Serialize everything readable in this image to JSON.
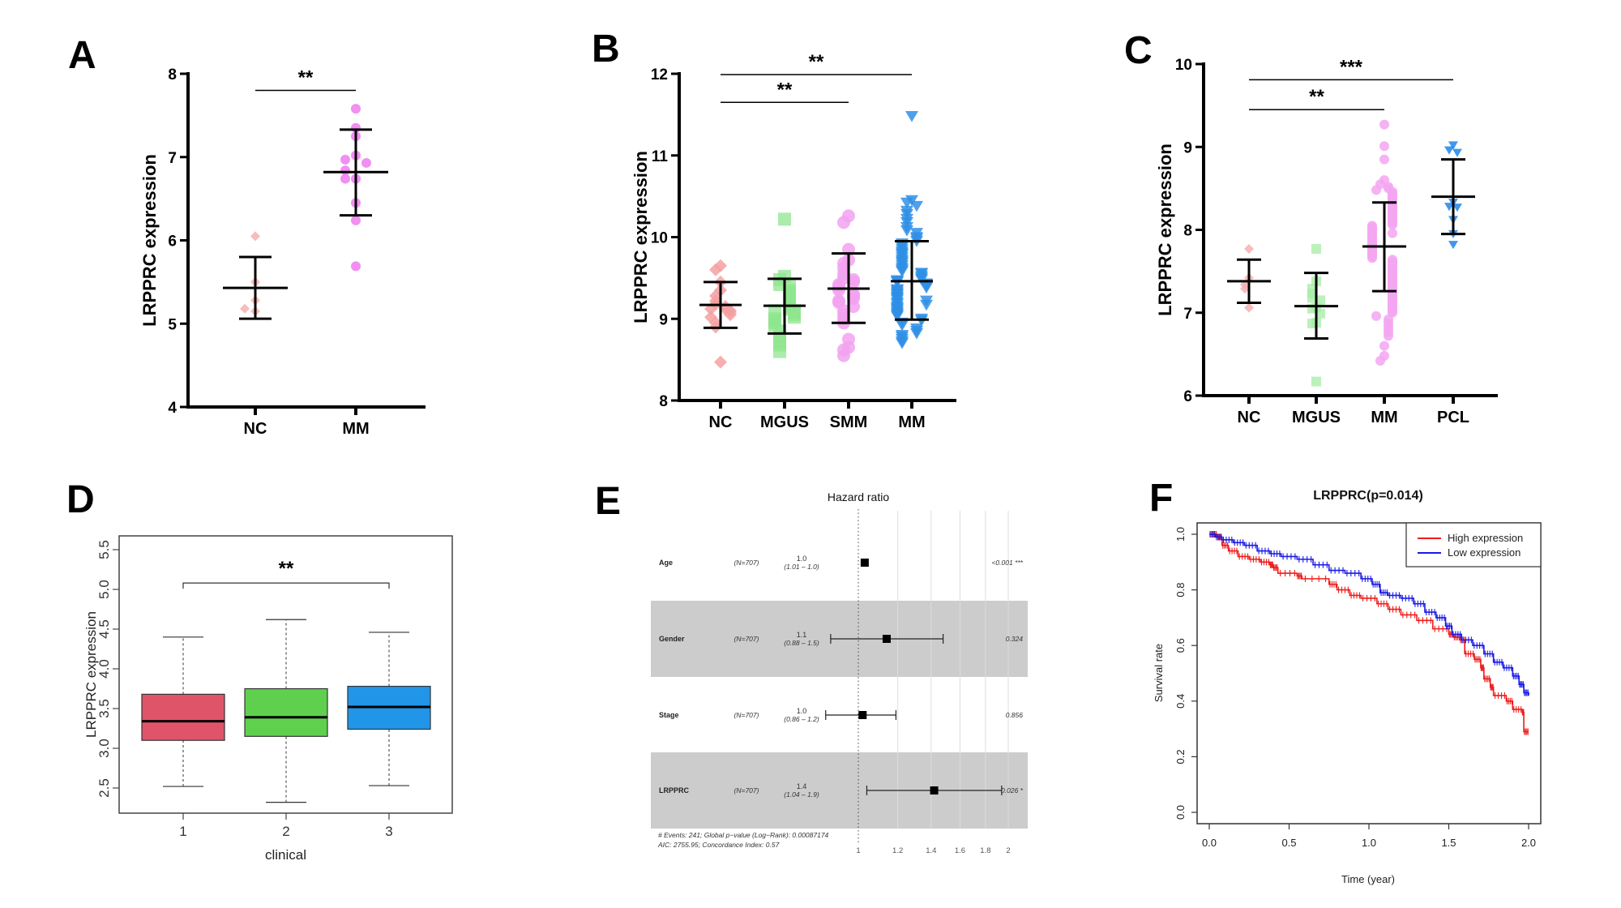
{
  "figure": {
    "panel_letters": [
      "A",
      "B",
      "C",
      "D",
      "E",
      "F"
    ]
  },
  "chart_data": [
    {
      "id": "A",
      "type": "scatter",
      "subtype": "dot-plot-mean-sd",
      "title": "",
      "xlabel": "",
      "ylabel": "LRPPRC expression",
      "ylim": [
        4,
        8
      ],
      "yticks": [
        4,
        5,
        6,
        7,
        8
      ],
      "categories": [
        "NC",
        "MM"
      ],
      "series": [
        {
          "name": "NC",
          "marker": "diamond",
          "color": "#f6b0b0",
          "values": [
            6.05,
            5.5,
            5.28,
            5.15,
            5.18
          ],
          "mean": 5.43,
          "sd_low": 5.06,
          "sd_high": 5.8
        },
        {
          "name": "MM",
          "marker": "circle",
          "color": "#ee7cee",
          "values": [
            7.58,
            7.35,
            7.25,
            7.02,
            6.97,
            6.93,
            6.84,
            6.74,
            6.74,
            6.45,
            6.24,
            5.69
          ],
          "mean": 6.82,
          "sd_low": 6.3,
          "sd_high": 7.33
        }
      ],
      "significance": [
        {
          "from": "NC",
          "to": "MM",
          "label": "**",
          "level": 7.8
        }
      ]
    },
    {
      "id": "B",
      "type": "scatter",
      "subtype": "dot-plot-mean-sd",
      "title": "",
      "xlabel": "",
      "ylabel": "LRPPRC expression",
      "ylim": [
        8,
        12
      ],
      "yticks": [
        8,
        9,
        10,
        11,
        12
      ],
      "categories": [
        "NC",
        "MGUS",
        "SMM",
        "MM"
      ],
      "series": [
        {
          "name": "NC",
          "marker": "diamond",
          "color": "#f4a0a0",
          "values": [
            9.65,
            9.6,
            9.45,
            9.35,
            9.28,
            9.22,
            9.18,
            9.15,
            9.12,
            9.12,
            9.1,
            9.08,
            9.05,
            9.02,
            8.95,
            8.9,
            8.47
          ],
          "mean": 9.17,
          "sd_low": 8.89,
          "sd_high": 9.45
        },
        {
          "name": "MGUS",
          "marker": "square",
          "color": "#8fe68f",
          "values": [
            10.22,
            9.52,
            9.48,
            9.42,
            9.4,
            9.35,
            9.32,
            9.28,
            9.25,
            9.22,
            9.18,
            9.15,
            9.12,
            9.1,
            9.1,
            9.08,
            9.05,
            9.02,
            9.0,
            8.98,
            8.95,
            8.92,
            8.85,
            8.78,
            8.72,
            8.68,
            8.6
          ],
          "mean": 9.16,
          "sd_low": 8.82,
          "sd_high": 9.49
        },
        {
          "name": "SMM",
          "marker": "circle",
          "color": "#f2a2f0",
          "values": [
            10.26,
            10.18,
            9.85,
            9.72,
            9.68,
            9.62,
            9.55,
            9.5,
            9.48,
            9.45,
            9.42,
            9.4,
            9.38,
            9.35,
            9.3,
            9.28,
            9.25,
            9.22,
            9.2,
            9.15,
            9.1,
            9.05,
            9.0,
            8.95,
            8.75,
            8.65,
            8.62,
            8.55
          ],
          "mean": 9.37,
          "sd_low": 8.95,
          "sd_high": 9.8
        },
        {
          "name": "MM",
          "marker": "triangle-down",
          "color": "#2f8fe6",
          "values": [
            11.48,
            10.45,
            10.42,
            10.38,
            10.32,
            10.28,
            10.22,
            10.18,
            10.12,
            10.08,
            10.05,
            10.0,
            9.98,
            9.95,
            9.92,
            9.9,
            9.88,
            9.85,
            9.82,
            9.8,
            9.78,
            9.75,
            9.72,
            9.7,
            9.68,
            9.65,
            9.62,
            9.6,
            9.58,
            9.56,
            9.55,
            9.52,
            9.5,
            9.48,
            9.47,
            9.46,
            9.45,
            9.43,
            9.42,
            9.4,
            9.38,
            9.36,
            9.35,
            9.33,
            9.31,
            9.3,
            9.28,
            9.26,
            9.25,
            9.23,
            9.22,
            9.2,
            9.18,
            9.17,
            9.15,
            9.13,
            9.12,
            9.1,
            9.08,
            9.06,
            9.05,
            9.03,
            9.0,
            8.98,
            8.95,
            8.92,
            8.88,
            8.85,
            8.82,
            8.8,
            8.78,
            8.75,
            8.72,
            8.7
          ],
          "mean": 9.46,
          "sd_low": 8.99,
          "sd_high": 9.95
        }
      ],
      "significance": [
        {
          "from": "NC",
          "to": "SMM",
          "label": "**",
          "level": 11.65
        },
        {
          "from": "NC",
          "to": "MM",
          "label": "**",
          "level": 11.99
        }
      ]
    },
    {
      "id": "C",
      "type": "scatter",
      "subtype": "dot-plot-mean-sd",
      "title": "",
      "xlabel": "",
      "ylabel": "LRPPRC expression",
      "ylim": [
        6,
        10
      ],
      "yticks": [
        6,
        7,
        8,
        9,
        10
      ],
      "categories": [
        "NC",
        "MGUS",
        "MM",
        "PCL"
      ],
      "series": [
        {
          "name": "NC",
          "marker": "diamond",
          "color": "#f6b0b0",
          "values": [
            7.77,
            7.42,
            7.34,
            7.29,
            7.06
          ],
          "mean": 7.38,
          "sd_low": 7.12,
          "sd_high": 7.64
        },
        {
          "name": "MGUS",
          "marker": "square",
          "color": "#a6eca6",
          "values": [
            7.77,
            7.38,
            7.29,
            7.23,
            7.18,
            7.15,
            7.06,
            7.05,
            6.99,
            6.88,
            6.87,
            6.17
          ],
          "mean": 7.08,
          "sd_low": 6.69,
          "sd_high": 7.48
        },
        {
          "name": "MM",
          "marker": "circle",
          "color": "#f3a6f1",
          "values": [
            9.27,
            9.01,
            8.85,
            8.6,
            8.55,
            8.52,
            8.5,
            8.48,
            8.46,
            8.44,
            8.42,
            8.4,
            8.38,
            8.36,
            8.34,
            8.32,
            8.3,
            8.28,
            8.26,
            8.24,
            8.22,
            8.2,
            8.18,
            8.16,
            8.14,
            8.12,
            8.1,
            8.08,
            8.06,
            8.05,
            8.03,
            8.02,
            8.0,
            7.98,
            7.96,
            7.95,
            7.93,
            7.92,
            7.9,
            7.88,
            7.86,
            7.85,
            7.83,
            7.82,
            7.8,
            7.78,
            7.76,
            7.75,
            7.73,
            7.72,
            7.7,
            7.68,
            7.66,
            7.64,
            7.62,
            7.6,
            7.58,
            7.56,
            7.54,
            7.52,
            7.5,
            7.48,
            7.46,
            7.44,
            7.42,
            7.4,
            7.38,
            7.36,
            7.34,
            7.32,
            7.3,
            7.28,
            7.26,
            7.24,
            7.22,
            7.2,
            7.18,
            7.16,
            7.14,
            7.12,
            7.1,
            7.08,
            7.06,
            7.04,
            7.02,
            7.0,
            6.96,
            6.92,
            6.88,
            6.84,
            6.8,
            6.76,
            6.72,
            6.6,
            6.48,
            6.42
          ],
          "mean": 7.8,
          "sd_low": 7.26,
          "sd_high": 8.33
        },
        {
          "name": "PCL",
          "marker": "triangle-down",
          "color": "#1f86ea",
          "values": [
            9.02,
            8.96,
            8.93,
            8.33,
            8.28,
            8.27,
            8.12,
            7.95,
            7.82
          ],
          "mean": 8.4,
          "sd_low": 7.95,
          "sd_high": 8.85
        }
      ],
      "significance": [
        {
          "from": "NC",
          "to": "MM",
          "label": "**",
          "level": 9.45
        },
        {
          "from": "NC",
          "to": "PCL",
          "label": "***",
          "level": 9.81
        }
      ]
    },
    {
      "id": "D",
      "type": "box",
      "title": "",
      "xlabel": "clinical",
      "ylabel": "LRPPRC expression",
      "ylim": [
        2.2,
        5.7
      ],
      "yticks": [
        "2.5",
        "3.0",
        "3.5",
        "4.0",
        "4.5",
        "5.0",
        "5.5"
      ],
      "categories": [
        "1",
        "2",
        "3"
      ],
      "boxes": [
        {
          "name": "1",
          "color": "#e0546a",
          "whisker_low": 2.52,
          "q1": 3.1,
          "median": 3.34,
          "q3": 3.68,
          "whisker_high": 4.4
        },
        {
          "name": "2",
          "color": "#5ed04e",
          "whisker_low": 2.32,
          "q1": 3.15,
          "median": 3.39,
          "q3": 3.75,
          "whisker_high": 4.62
        },
        {
          "name": "3",
          "color": "#2196e8",
          "whisker_low": 2.53,
          "q1": 3.24,
          "median": 3.52,
          "q3": 3.78,
          "whisker_high": 4.46
        }
      ],
      "significance": [
        {
          "from": "1",
          "to": "3",
          "label": "**",
          "level": 5.08
        }
      ]
    },
    {
      "id": "E",
      "type": "forest",
      "title": "Hazard ratio",
      "xlim": [
        0.82,
        2.15
      ],
      "xticks": [
        "1",
        "1.2",
        "1.4",
        "1.6",
        "1.8",
        "2"
      ],
      "reference": 1,
      "rows": [
        {
          "variable": "Age",
          "n": "(N=707)",
          "hr_label": "1.0",
          "ci_label": "(1.01 – 1.0)",
          "hr": 1.03,
          "ci_low": 1.01,
          "ci_high": 1.04,
          "p": "<0.001 ***",
          "shaded": false
        },
        {
          "variable": "Gender",
          "n": "(N=707)",
          "hr_label": "1.1",
          "ci_label": "(0.88 – 1.5)",
          "hr": 1.14,
          "ci_low": 0.88,
          "ci_high": 1.48,
          "p": "0.324",
          "shaded": true
        },
        {
          "variable": "Stage",
          "n": "(N=707)",
          "hr_label": "1.0",
          "ci_label": "(0.86 – 1.2)",
          "hr": 1.02,
          "ci_low": 0.86,
          "ci_high": 1.19,
          "p": "0.856",
          "shaded": false
        },
        {
          "variable": "LRPPRC",
          "n": "(N=707)",
          "hr_label": "1.4",
          "ci_label": "(1.04 – 1.9)",
          "hr": 1.42,
          "ci_low": 1.04,
          "ci_high": 1.94,
          "p": "0.026 *",
          "shaded": true
        }
      ],
      "footer": [
        "# Events: 241; Global p−value (Log−Rank): 0.00087174",
        "AIC: 2755.95; Concordance Index: 0.57"
      ]
    },
    {
      "id": "F",
      "type": "line",
      "subtype": "kaplan-meier",
      "title": "LRPPRC(p=0.014)",
      "xlabel": "Time (year)",
      "ylabel": "Survival rate",
      "xlim": [
        0,
        2
      ],
      "ylim": [
        0,
        1
      ],
      "xticks": [
        "0.0",
        "0.5",
        "1.0",
        "1.5",
        "2.0"
      ],
      "yticks": [
        "0.0",
        "0.2",
        "0.4",
        "0.6",
        "0.8",
        "1.0"
      ],
      "legend": {
        "position": "top-right",
        "entries": [
          "High expression",
          "Low expression"
        ]
      },
      "series": [
        {
          "name": "High expression",
          "color": "#ee1c1c",
          "x": [
            0,
            0.05,
            0.08,
            0.12,
            0.18,
            0.25,
            0.32,
            0.38,
            0.4,
            0.43,
            0.55,
            0.58,
            0.75,
            0.8,
            0.88,
            0.95,
            1.05,
            1.12,
            1.2,
            1.3,
            1.4,
            1.5,
            1.53,
            1.57,
            1.6,
            1.66,
            1.7,
            1.72,
            1.76,
            1.78,
            1.86,
            1.9,
            1.96,
            1.97,
            2.0
          ],
          "y": [
            1.0,
            0.99,
            0.96,
            0.94,
            0.92,
            0.91,
            0.9,
            0.89,
            0.88,
            0.86,
            0.85,
            0.84,
            0.82,
            0.8,
            0.78,
            0.77,
            0.75,
            0.73,
            0.71,
            0.69,
            0.66,
            0.64,
            0.63,
            0.62,
            0.57,
            0.55,
            0.52,
            0.48,
            0.45,
            0.42,
            0.4,
            0.37,
            0.36,
            0.29,
            0.29
          ]
        },
        {
          "name": "Low expression",
          "color": "#1a1ae6",
          "x": [
            0,
            0.04,
            0.08,
            0.15,
            0.22,
            0.3,
            0.38,
            0.45,
            0.55,
            0.65,
            0.75,
            0.85,
            0.95,
            1.02,
            1.07,
            1.12,
            1.2,
            1.28,
            1.35,
            1.42,
            1.48,
            1.52,
            1.58,
            1.65,
            1.72,
            1.78,
            1.84,
            1.9,
            1.94,
            1.97,
            2.0
          ],
          "y": [
            1.0,
            0.99,
            0.98,
            0.97,
            0.96,
            0.94,
            0.93,
            0.92,
            0.91,
            0.89,
            0.87,
            0.86,
            0.84,
            0.82,
            0.79,
            0.78,
            0.77,
            0.75,
            0.72,
            0.7,
            0.67,
            0.64,
            0.62,
            0.6,
            0.57,
            0.54,
            0.52,
            0.49,
            0.46,
            0.43,
            0.42
          ]
        }
      ]
    }
  ]
}
